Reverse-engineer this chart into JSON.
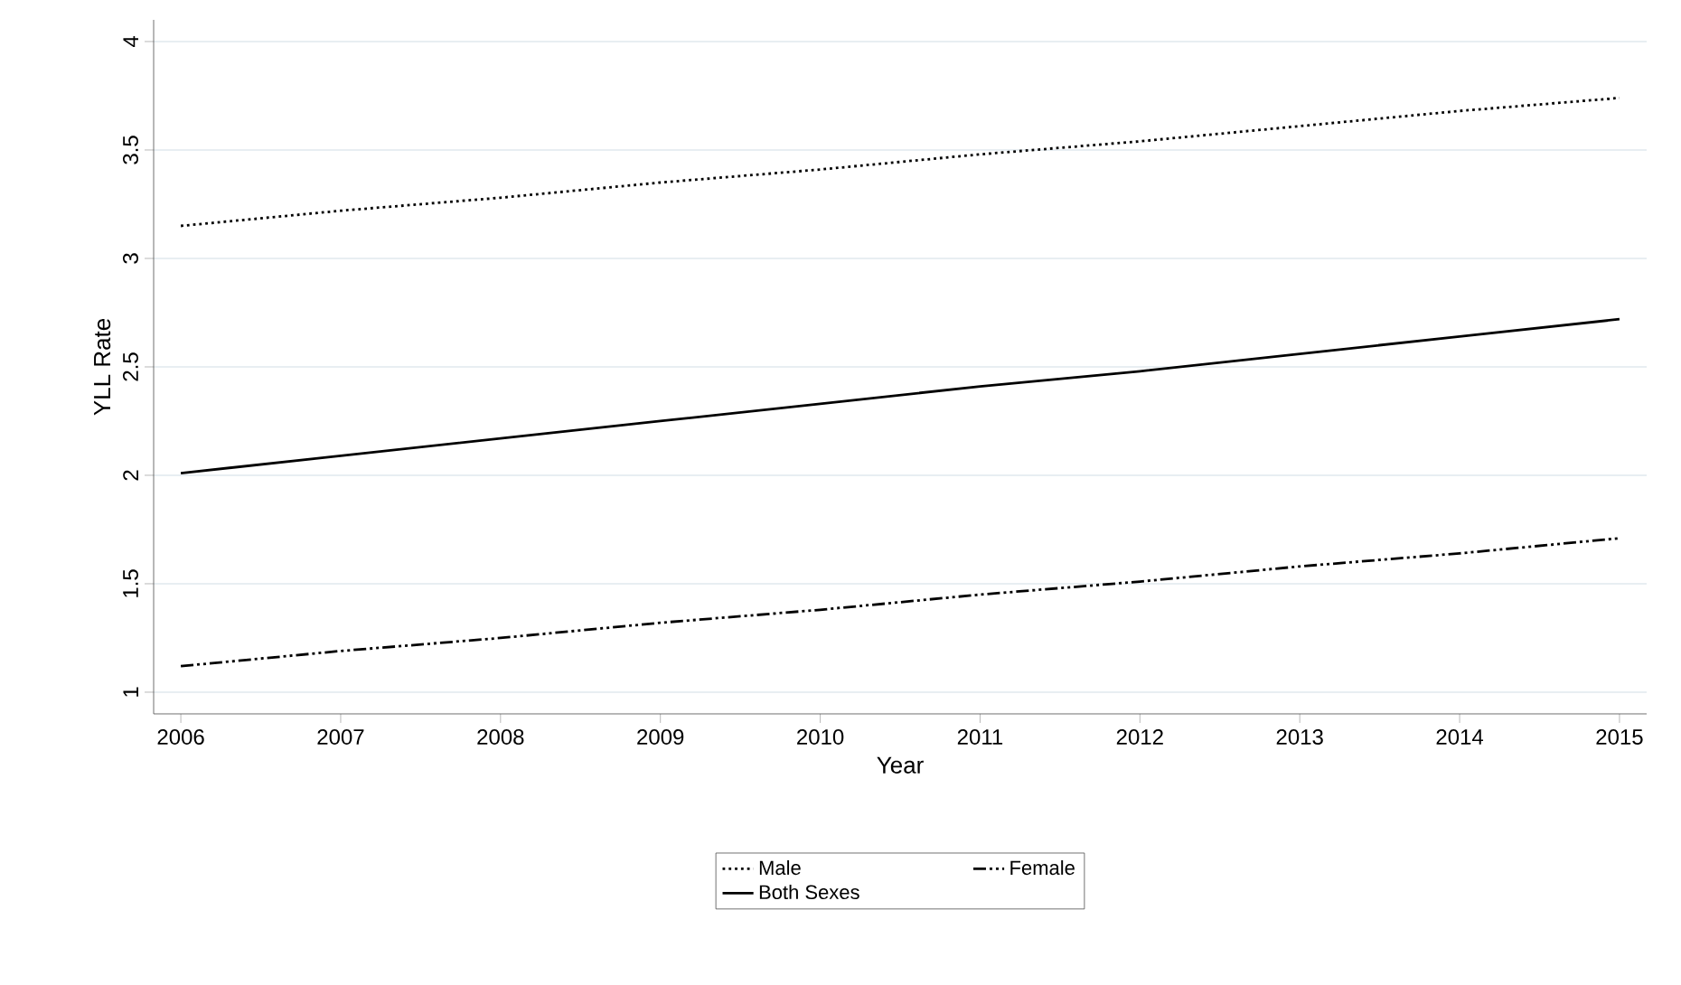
{
  "chart_data": {
    "type": "line",
    "xlabel": "Year",
    "ylabel": "YLL Rate",
    "x": [
      2006,
      2007,
      2008,
      2009,
      2010,
      2011,
      2012,
      2013,
      2014,
      2015
    ],
    "series": [
      {
        "name": "Male",
        "color": "#000000",
        "line_style": "dotted",
        "values": [
          3.15,
          3.22,
          3.28,
          3.35,
          3.41,
          3.48,
          3.54,
          3.61,
          3.68,
          3.74
        ]
      },
      {
        "name": "Female",
        "color": "#000000",
        "line_style": "dashdot",
        "values": [
          1.12,
          1.19,
          1.25,
          1.32,
          1.38,
          1.45,
          1.51,
          1.58,
          1.64,
          1.71
        ]
      },
      {
        "name": "Both Sexes",
        "color": "#000000",
        "line_style": "solid",
        "values": [
          2.01,
          2.09,
          2.17,
          2.25,
          2.33,
          2.41,
          2.48,
          2.56,
          2.64,
          2.72
        ]
      }
    ],
    "xlim": [
      2005.83,
      2015.17
    ],
    "ylim": [
      0.9,
      4.1
    ],
    "xticks": [
      2006,
      2007,
      2008,
      2009,
      2010,
      2011,
      2012,
      2013,
      2014,
      2015
    ],
    "yticks": [
      1,
      1.5,
      2,
      2.5,
      3,
      3.5,
      4
    ],
    "grid": "y",
    "legend": "bottom",
    "marker": "none"
  }
}
